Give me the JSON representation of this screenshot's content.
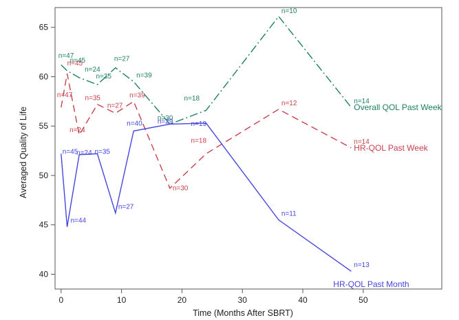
{
  "chart_data": {
    "type": "line",
    "xlabel": "Time (Months After SBRT)",
    "ylabel": "Averaged Quality of Life",
    "xlim": [
      -1,
      63
    ],
    "ylim": [
      38.5,
      67
    ],
    "x_ticks": [
      0,
      10,
      20,
      30,
      40,
      50
    ],
    "y_ticks": [
      40,
      45,
      50,
      55,
      60,
      65
    ],
    "grid": false,
    "legend": "none (series labels at line ends)",
    "series": [
      {
        "name": "Overall QOL Past Week",
        "color": "#1b7f5e",
        "dash": "dash-dot",
        "x": [
          0,
          1,
          3,
          6,
          9,
          12,
          18,
          24,
          36,
          48
        ],
        "y": [
          61.2,
          60.6,
          59.9,
          59.2,
          60.9,
          59.5,
          55.2,
          56.6,
          66.1,
          56.9
        ],
        "labels": [
          "n=47",
          "n=45",
          "n=24",
          "n=35",
          "n=27",
          "n=39",
          "n=30",
          "n=18",
          "n=10",
          "n=14"
        ]
      },
      {
        "name": "HR-QOL Past Week",
        "color": "#c8404c",
        "dash": "dash",
        "x": [
          0,
          1,
          3,
          6,
          9,
          12,
          18,
          24,
          36,
          48
        ],
        "y": [
          56.9,
          60.3,
          54.1,
          57.2,
          56.3,
          57.5,
          48.7,
          52.2,
          56.7,
          52.8
        ],
        "labels": [
          "n=47",
          "n=45",
          "n=24",
          "n=35",
          "n=27",
          "n=39",
          "n=30",
          "n=18",
          "n=12",
          "n=14"
        ]
      },
      {
        "name": "HR-QOL Past Month",
        "color": "#4545e0",
        "dash": "solid",
        "x": [
          0,
          1,
          3,
          6,
          9,
          12,
          18,
          24,
          36,
          48
        ],
        "y": [
          52.2,
          44.8,
          52.1,
          52.2,
          46.2,
          54.5,
          55.2,
          55.3,
          45.5,
          40.3
        ],
        "labels": [
          "n=45",
          "n=44",
          "n=24",
          "n=35",
          "n=27",
          "n=40",
          "n=29",
          "n=19",
          "n=11",
          "n=13"
        ]
      }
    ]
  }
}
